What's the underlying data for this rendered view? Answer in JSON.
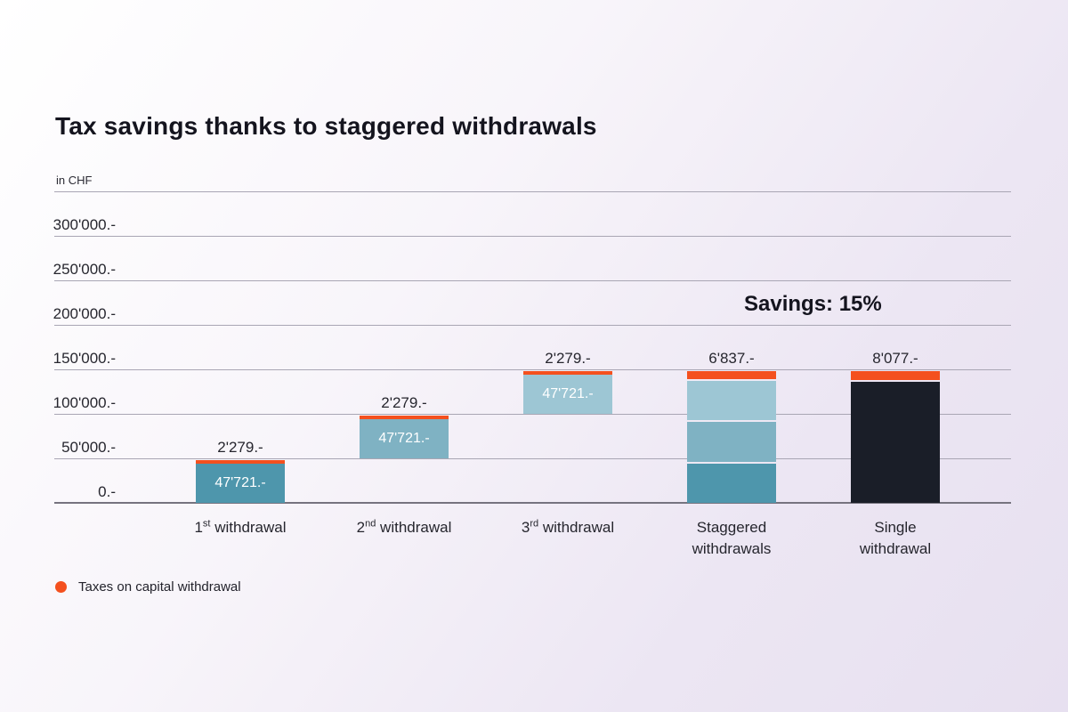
{
  "page": {
    "title": "Tax savings thanks to staggered withdrawals"
  },
  "colors": {
    "teal_dark": "#4e96ac",
    "teal_mid": "#7fb2c3",
    "teal_light": "#9dc6d4",
    "navy": "#1a1e28",
    "orange": "#f4501e"
  },
  "legend": {
    "label": "Taxes on capital withdrawal",
    "marker_color": "#f4501e"
  },
  "chart_data": {
    "type": "bar",
    "subtype": "waterfall-stacked",
    "title": "Tax savings thanks to staggered withdrawals",
    "unit_label": "in CHF",
    "annotation": "Savings: 15%",
    "ylim": [
      0,
      350000
    ],
    "gridline_step": 50000,
    "grid": true,
    "legend_position": "bottom-left",
    "y_ticks": [
      "300'000.-",
      "250'000.-",
      "200'000.-",
      "150'000.-",
      "100'000.-",
      "50'000.-",
      "0.-"
    ],
    "categories": [
      "1st withdrawal",
      "2nd withdrawal",
      "3rd withdrawal",
      "Staggered withdrawals",
      "Single withdrawal"
    ],
    "x_labels": [
      {
        "pre": "1",
        "sup": "st",
        "post": " withdrawal"
      },
      {
        "pre": "2",
        "sup": "nd",
        "post": " withdrawal"
      },
      {
        "pre": "3",
        "sup": "rd",
        "post": " withdrawal"
      },
      {
        "line1": "Staggered",
        "line2": "withdrawals"
      },
      {
        "line1": "Single",
        "line2": "withdrawal"
      }
    ],
    "legend_entries": [
      "Taxes on capital withdrawal"
    ],
    "bars": [
      {
        "name": "1st-withdrawal",
        "base": 0,
        "segments": [
          {
            "value": 47721,
            "color": "teal_dark",
            "label": "47'721.-"
          }
        ],
        "tax": {
          "value": 2279,
          "label": "2'279.-"
        }
      },
      {
        "name": "2nd-withdrawal",
        "base": 50000,
        "segments": [
          {
            "value": 47721,
            "color": "teal_mid",
            "label": "47'721.-"
          }
        ],
        "tax": {
          "value": 2279,
          "label": "2'279.-"
        }
      },
      {
        "name": "3rd-withdrawal",
        "base": 100000,
        "segments": [
          {
            "value": 47721,
            "color": "teal_light",
            "label": "47'721.-"
          }
        ],
        "tax": {
          "value": 2279,
          "label": "2'279.-"
        }
      },
      {
        "name": "staggered-withdrawals",
        "base": 0,
        "segments": [
          {
            "value": 47721,
            "color": "teal_dark"
          },
          {
            "value": 47721,
            "color": "teal_mid"
          },
          {
            "value": 47721,
            "color": "teal_light"
          }
        ],
        "tax": {
          "value": 6837,
          "label": "6'837.-"
        }
      },
      {
        "name": "single-withdrawal",
        "base": 0,
        "segments": [
          {
            "value": 141923,
            "color": "navy"
          }
        ],
        "tax": {
          "value": 8077,
          "label": "8'077.-"
        }
      }
    ]
  }
}
